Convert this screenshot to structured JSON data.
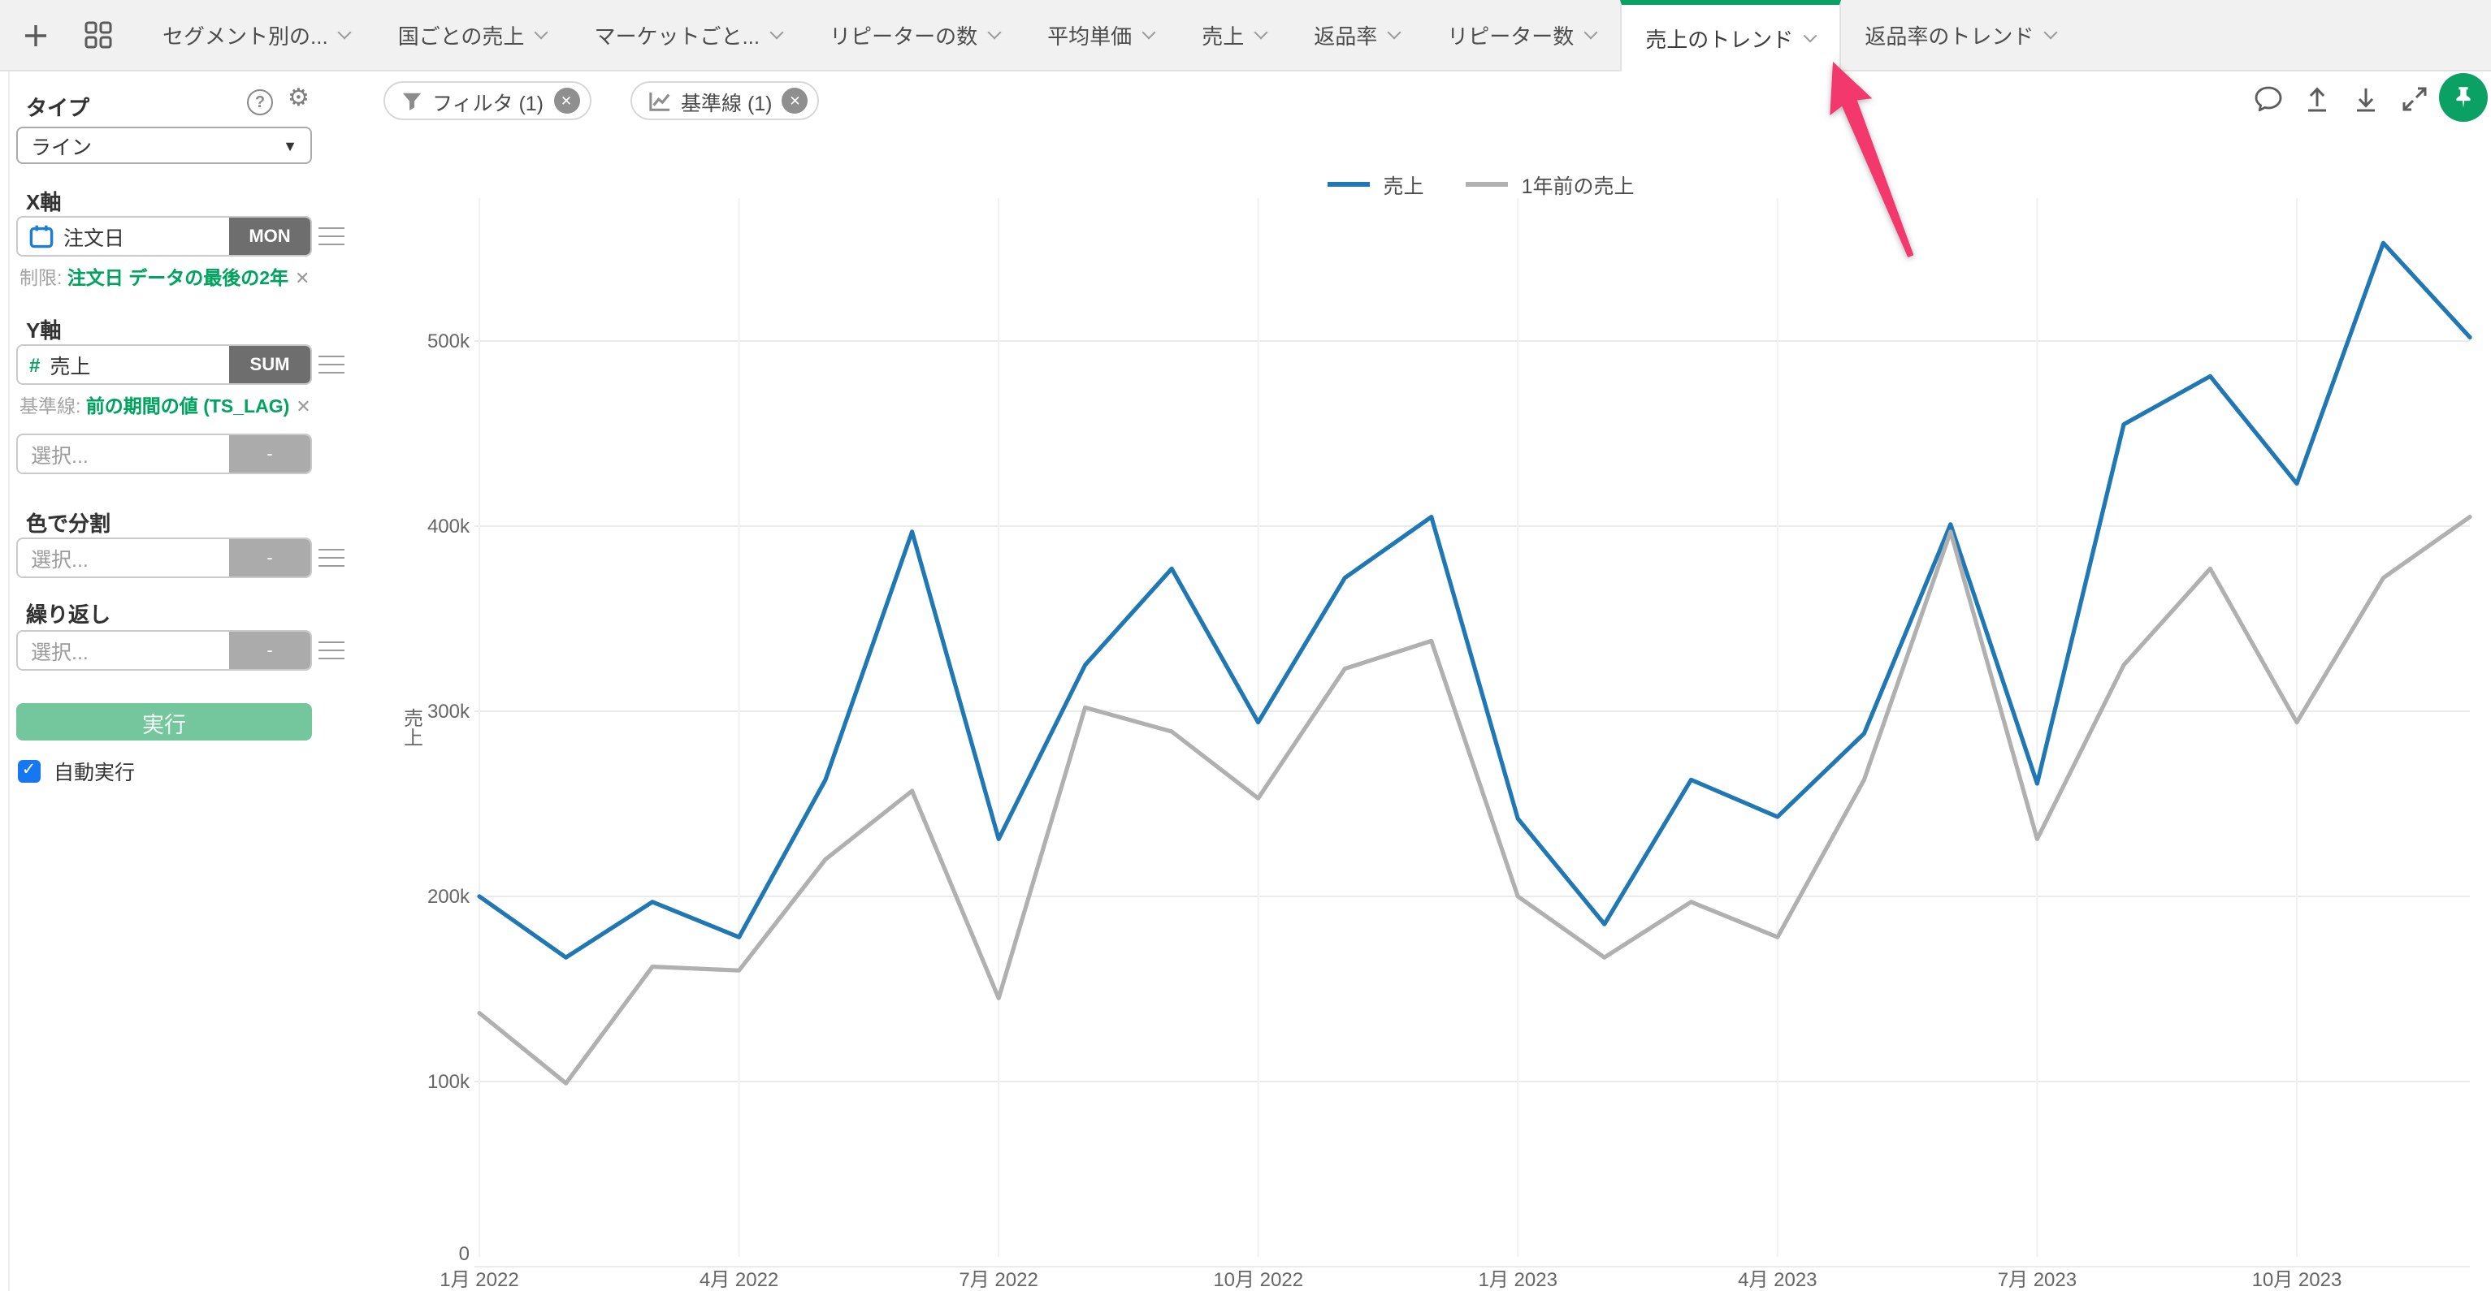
{
  "tab_bar": {
    "tabs": [
      {
        "label": "セグメント別の...",
        "active": false
      },
      {
        "label": "国ごとの売上",
        "active": false
      },
      {
        "label": "マーケットごと...",
        "active": false
      },
      {
        "label": "リピーターの数",
        "active": false
      },
      {
        "label": "平均単価",
        "active": false
      },
      {
        "label": "売上",
        "active": false
      },
      {
        "label": "返品率",
        "active": false
      },
      {
        "label": "リピーター数",
        "active": false
      },
      {
        "label": "売上のトレンド",
        "active": true
      },
      {
        "label": "返品率のトレンド",
        "active": false
      }
    ]
  },
  "sidebar": {
    "type_label": "タイプ",
    "type_value": "ライン",
    "x_axis": {
      "label": "X軸",
      "field": "注文日",
      "agg": "MON",
      "constraint_prefix": "制限:",
      "constraint": "注文日 データの最後の2年"
    },
    "y_axis": {
      "label": "Y軸",
      "field": "売上",
      "agg": "SUM",
      "baseline_prefix": "基準線:",
      "baseline": "前の期間の値 (TS_LAG)"
    },
    "select_placeholder": "選択...",
    "empty_agg": "-",
    "color_label": "色で分割",
    "repeat_label": "繰り返し",
    "run_label": "実行",
    "auto_run_label": "自動実行",
    "auto_run_checked": true
  },
  "toolbar": {
    "filter_pill": "フィルタ (1)",
    "baseline_pill": "基準線 (1)"
  },
  "annotation": {
    "color": "#f3386e",
    "points_to_tab": "売上のトレンド"
  },
  "accent_colors": {
    "active_tab_green": "#0ba164",
    "field_green_text": "#00a45e",
    "run_button_green": "#74c79c",
    "checkbox_blue": "#1677f0",
    "calendar_icon_blue": "#1a7fd4"
  },
  "chart_data": {
    "type": "line",
    "title": "",
    "xlabel": "",
    "ylabel": "売上",
    "grid": true,
    "legend_position": "top-center",
    "n_points": 24,
    "x": [
      "2022-01",
      "2022-02",
      "2022-03",
      "2022-04",
      "2022-05",
      "2022-06",
      "2022-07",
      "2022-08",
      "2022-09",
      "2022-10",
      "2022-11",
      "2022-12",
      "2023-01",
      "2023-02",
      "2023-03",
      "2023-04",
      "2023-05",
      "2023-06",
      "2023-07",
      "2023-08",
      "2023-09",
      "2023-10",
      "2023-11",
      "2023-12"
    ],
    "x_tick_positions": [
      0,
      3,
      6,
      9,
      12,
      15,
      18,
      21
    ],
    "x_tick_labels": [
      "1月 2022",
      "4月 2022",
      "7月 2022",
      "10月 2022",
      "1月 2023",
      "4月 2023",
      "7月 2023",
      "10月 2023"
    ],
    "ylim": [
      0,
      560000
    ],
    "y_ticks": [
      {
        "v": 0,
        "label": "0"
      },
      {
        "v": 100000,
        "label": "100k"
      },
      {
        "v": 200000,
        "label": "200k"
      },
      {
        "v": 300000,
        "label": "300k"
      },
      {
        "v": 400000,
        "label": "400k"
      },
      {
        "v": 500000,
        "label": "500k"
      }
    ],
    "series": [
      {
        "name": "売上",
        "color": "#1f77b4",
        "values": [
          200000,
          167000,
          197000,
          178000,
          263000,
          397000,
          231000,
          325000,
          377000,
          294000,
          372000,
          405000,
          242000,
          185000,
          263000,
          243000,
          288000,
          401000,
          261000,
          455000,
          481000,
          423000,
          553000,
          502000
        ]
      },
      {
        "name": "1年前の売上",
        "color": "#b0b0b0",
        "values": [
          137000,
          99000,
          162000,
          160000,
          220000,
          257000,
          145000,
          302000,
          289000,
          253000,
          323000,
          338000,
          200000,
          167000,
          197000,
          178000,
          263000,
          397000,
          231000,
          325000,
          377000,
          294000,
          372000,
          405000
        ]
      }
    ]
  }
}
